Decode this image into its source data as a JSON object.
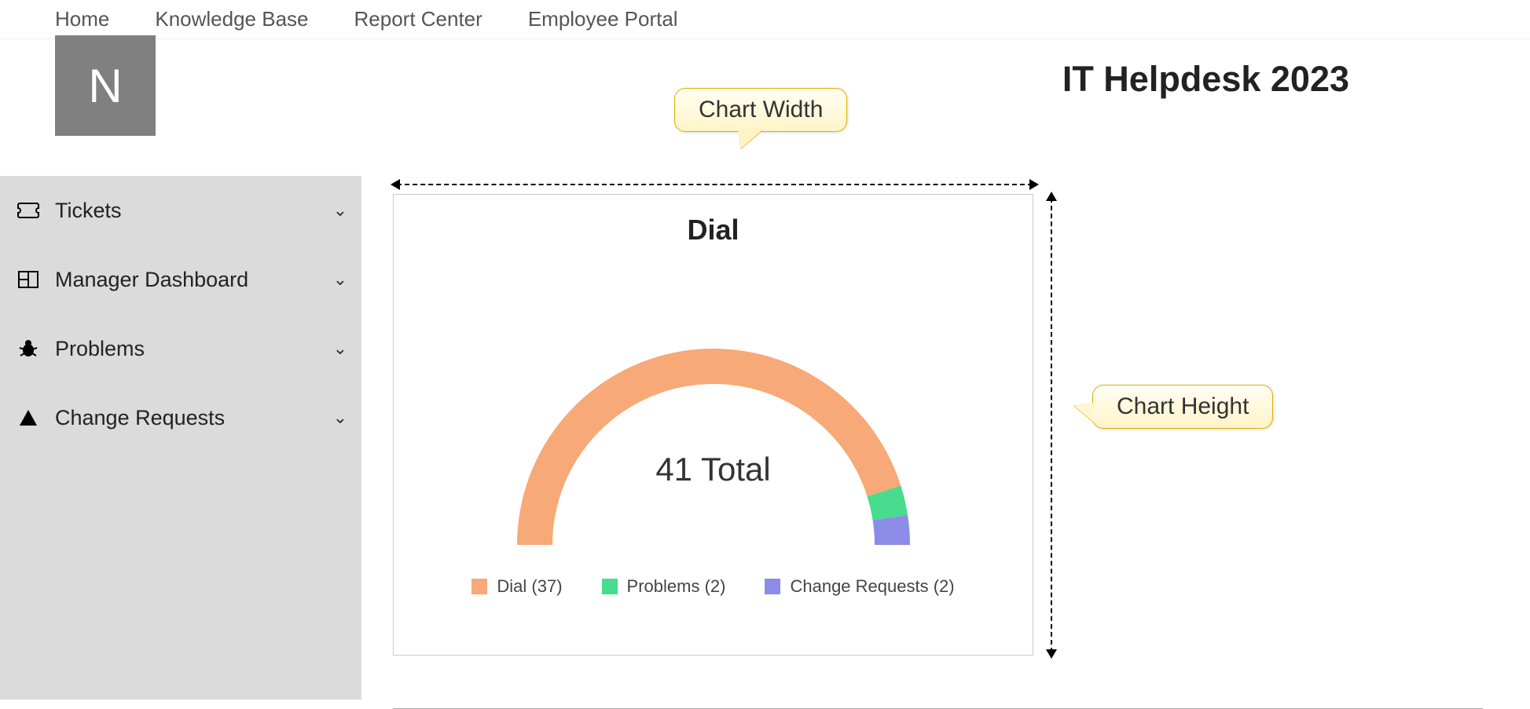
{
  "nav": {
    "items": [
      "Home",
      "Knowledge Base",
      "Report Center",
      "Employee Portal"
    ]
  },
  "header": {
    "avatar_letter": "N",
    "site_title": "IT Helpdesk 2023"
  },
  "sidebar": {
    "items": [
      {
        "icon": "ticket-icon",
        "label": "Tickets"
      },
      {
        "icon": "grid-icon",
        "label": "Manager Dashboard"
      },
      {
        "icon": "bug-icon",
        "label": "Problems"
      },
      {
        "icon": "triangle-icon",
        "label": "Change Requests"
      }
    ]
  },
  "callouts": {
    "width_label": "Chart Width",
    "height_label": "Chart Height",
    "bg_gradient_top": "#fffef2",
    "bg_gradient_bottom": "#fff4c8",
    "border_color": "#e0b000",
    "font_size_pt": 22
  },
  "chart": {
    "type": "semi-donut",
    "title": "Dial",
    "title_fontsize_pt": 27,
    "center_label": "41 Total",
    "center_label_fontsize_pt": 31,
    "total": 41,
    "segments": [
      {
        "name": "Dial",
        "value": 37,
        "color": "#f7a977"
      },
      {
        "name": "Problems",
        "value": 2,
        "color": "#48dc8e"
      },
      {
        "name": "Change Requests",
        "value": 2,
        "color": "#8c8ce8"
      }
    ],
    "legend": [
      {
        "label": "Dial (37)",
        "color": "#f7a977"
      },
      {
        "label": "Problems (2)",
        "color": "#48dc8e"
      },
      {
        "label": "Change Requests (2)",
        "color": "#8c8ce8"
      }
    ],
    "legend_fontsize_pt": 16,
    "ring_outer_radius": 250,
    "ring_inner_radius": 205,
    "background_color": "#ffffff",
    "card_border_color": "#cccccc",
    "dimension_arrow_color": "#000000"
  }
}
